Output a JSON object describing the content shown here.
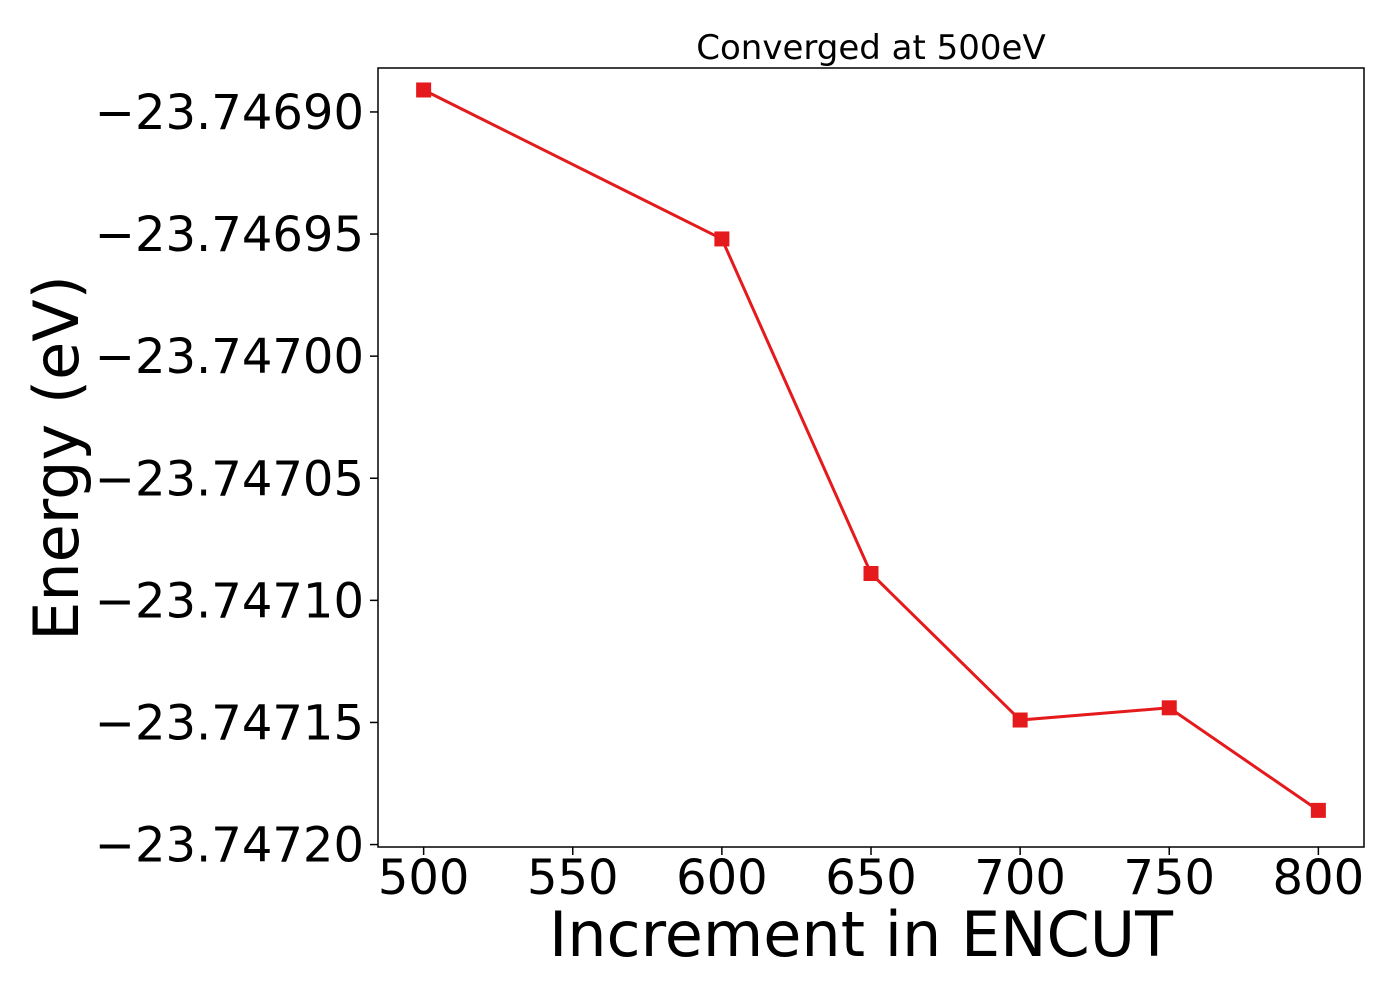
{
  "chart_data": {
    "type": "line",
    "title": "Converged at 500eV",
    "xlabel": "Increment in ENCUT",
    "ylabel": "Energy (eV)",
    "x": [
      500,
      600,
      650,
      700,
      750,
      800
    ],
    "series": [
      {
        "values": [
          -23.746891,
          -23.746952,
          -23.747089,
          -23.747149,
          -23.747144,
          -23.747186
        ],
        "color": "#e41a1c",
        "marker": "square"
      }
    ],
    "xticks": [
      "500",
      "550",
      "600",
      "650",
      "700",
      "750",
      "800"
    ],
    "yticks": [
      "−23.74690",
      "−23.74695",
      "−23.74700",
      "−23.74705",
      "−23.74710",
      "−23.74715",
      "−23.74720"
    ],
    "xlim": [
      484.7,
      815.3
    ],
    "ylim": [
      -23.747201,
      -23.746882
    ],
    "grid": false,
    "legend": "none"
  }
}
